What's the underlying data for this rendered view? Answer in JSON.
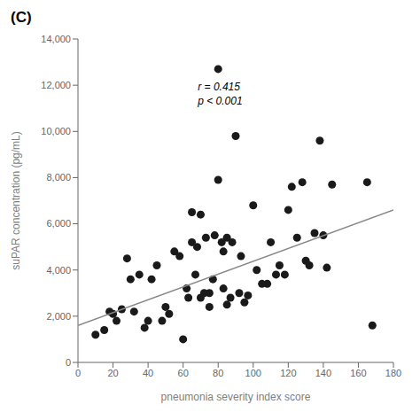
{
  "chart_data": {
    "type": "scatter",
    "title": "(C)",
    "xlabel": "pneumonia severity index score",
    "ylabel": "suPAR concentration (pg/mL)",
    "annotation": "r = 0.415\np < 0.001",
    "xlim": [
      0,
      180
    ],
    "ylim": [
      0,
      14000
    ],
    "xticks": [
      0,
      20,
      40,
      60,
      80,
      100,
      120,
      140,
      160,
      180
    ],
    "yticks": [
      0,
      {
        "value": 2000,
        "label": "2,000"
      },
      {
        "value": 4000,
        "label": "4,000"
      },
      {
        "value": 6000,
        "label": "6,000"
      },
      {
        "value": 8000,
        "label": "8,000"
      },
      {
        "value": 10000,
        "label": "10,000"
      },
      {
        "value": 12000,
        "label": "12,000"
      },
      {
        "value": 14000,
        "label": "14,000"
      }
    ],
    "series": [
      {
        "type": "scatter",
        "color": "#1a1a1a",
        "x": [
          10,
          15,
          18,
          20,
          22,
          25,
          28,
          30,
          32,
          35,
          38,
          40,
          42,
          45,
          48,
          50,
          52,
          55,
          58,
          60,
          62,
          63,
          65,
          65,
          67,
          68,
          70,
          70,
          72,
          73,
          75,
          75,
          77,
          78,
          80,
          80,
          82,
          83,
          83,
          85,
          85,
          87,
          88,
          90,
          92,
          93,
          95,
          97,
          100,
          102,
          105,
          108,
          110,
          113,
          115,
          118,
          120,
          122,
          125,
          128,
          130,
          132,
          135,
          138,
          140,
          142,
          145,
          165,
          168
        ],
        "values": [
          1200,
          1400,
          2200,
          2100,
          1800,
          2300,
          4500,
          3600,
          2200,
          3800,
          1500,
          1800,
          3600,
          4200,
          1800,
          2400,
          2100,
          4800,
          4600,
          1000,
          3200,
          2800,
          5200,
          6500,
          3800,
          5000,
          2800,
          6400,
          3000,
          5400,
          2400,
          3000,
          3600,
          5500,
          7900,
          12700,
          5200,
          4800,
          3200,
          5400,
          2500,
          2800,
          5200,
          9800,
          3000,
          4600,
          2600,
          2900,
          6800,
          4000,
          3400,
          3400,
          5200,
          3800,
          4200,
          3800,
          6600,
          7600,
          5400,
          7800,
          4400,
          4200,
          5600,
          9600,
          5500,
          4100,
          7700,
          7800,
          1600
        ]
      },
      {
        "type": "line",
        "color": "#888888",
        "x": [
          0,
          180
        ],
        "values": [
          1600,
          6600
        ]
      }
    ]
  }
}
